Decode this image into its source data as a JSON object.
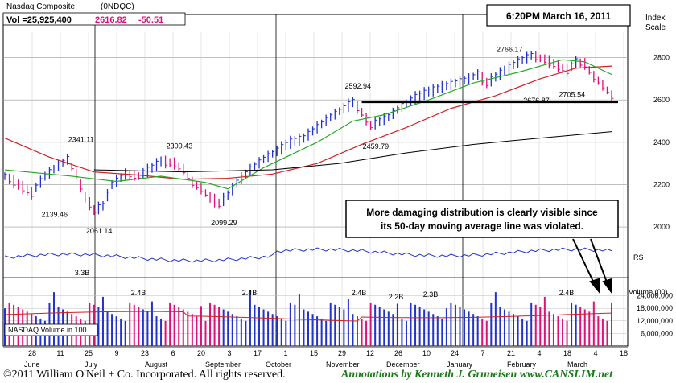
{
  "header": {
    "name": "Nasdaq Composite",
    "symbol": "(0NDQC)",
    "vol_label": "Vol =25,925,400",
    "price": "2616.82",
    "change": "-50.51",
    "timestamp": "6:20PM March 16, 2011",
    "scale_label_1": "Index",
    "scale_label_2": "Scale"
  },
  "annotation": {
    "line1": "More damaging distribution is clearly visible since",
    "line2": "its 50-day moving average line was violated."
  },
  "footer": {
    "copyright": "©2011 William O'Neil + Co. Incorporated. All rights reserved.",
    "credit": "Annotations by Kenneth J. Gruneisen  www.CANSLIM.net"
  },
  "colors": {
    "up": "#2233cc",
    "down": "#dd1177",
    "ma50": "#22aa22",
    "ma200": "#cc2222",
    "rs": "#2233cc",
    "price_text": "#dd1177"
  },
  "chart_data": {
    "type": "bar",
    "price_axis": {
      "ticks": [
        "2800",
        "2600",
        "2400",
        "2200",
        "2000"
      ],
      "range": [
        1780,
        2920
      ]
    },
    "x_ticks": [
      "28",
      "11",
      "25",
      "9",
      "23",
      "6",
      "20",
      "3",
      "17",
      "1",
      "15",
      "29",
      "12",
      "26",
      "10",
      "24",
      "7",
      "21",
      "4",
      "18",
      "4",
      "18"
    ],
    "months": [
      "June",
      "July",
      "August",
      "September",
      "October",
      "November",
      "December",
      "January",
      "February",
      "March"
    ],
    "price_labels": [
      {
        "text": "2341.11",
        "value": 2341.11
      },
      {
        "text": "2139.46",
        "value": 2139.46
      },
      {
        "text": "2061.14",
        "value": 2061.14
      },
      {
        "text": "2309.43",
        "value": 2309.43
      },
      {
        "text": "2099.29",
        "value": 2099.29
      },
      {
        "text": "2592.94",
        "value": 2592.94
      },
      {
        "text": "2459.79",
        "value": 2459.79
      },
      {
        "text": "2766.17",
        "value": 2766.17
      },
      {
        "text": "2676.87",
        "value": 2676.87
      },
      {
        "text": "2705.54",
        "value": 2705.54
      }
    ],
    "support_level": 2590,
    "price_series": [
      [
        0,
        2240
      ],
      [
        3,
        2200
      ],
      [
        6,
        2160
      ],
      [
        9,
        2240
      ],
      [
        12,
        2290
      ],
      [
        14,
        2320
      ],
      [
        16,
        2250
      ],
      [
        18,
        2140
      ],
      [
        20,
        2080
      ],
      [
        22,
        2100
      ],
      [
        24,
        2200
      ],
      [
        27,
        2250
      ],
      [
        30,
        2240
      ],
      [
        33,
        2280
      ],
      [
        35,
        2310
      ],
      [
        38,
        2300
      ],
      [
        40,
        2270
      ],
      [
        42,
        2210
      ],
      [
        44,
        2180
      ],
      [
        46,
        2140
      ],
      [
        48,
        2110
      ],
      [
        50,
        2150
      ],
      [
        52,
        2210
      ],
      [
        55,
        2270
      ],
      [
        58,
        2320
      ],
      [
        61,
        2360
      ],
      [
        64,
        2400
      ],
      [
        67,
        2420
      ],
      [
        70,
        2470
      ],
      [
        73,
        2520
      ],
      [
        76,
        2560
      ],
      [
        78,
        2590
      ],
      [
        80,
        2540
      ],
      [
        82,
        2480
      ],
      [
        84,
        2500
      ],
      [
        86,
        2520
      ],
      [
        89,
        2570
      ],
      [
        92,
        2610
      ],
      [
        95,
        2640
      ],
      [
        98,
        2660
      ],
      [
        101,
        2680
      ],
      [
        104,
        2700
      ],
      [
        106,
        2720
      ],
      [
        108,
        2680
      ],
      [
        110,
        2710
      ],
      [
        112,
        2740
      ],
      [
        115,
        2780
      ],
      [
        118,
        2810
      ],
      [
        121,
        2790
      ],
      [
        124,
        2760
      ],
      [
        126,
        2740
      ],
      [
        128,
        2780
      ],
      [
        130,
        2770
      ],
      [
        132,
        2710
      ],
      [
        134,
        2670
      ],
      [
        136,
        2620
      ]
    ],
    "ma50": [
      [
        0,
        2270
      ],
      [
        15,
        2240
      ],
      [
        25,
        2215
      ],
      [
        35,
        2240
      ],
      [
        45,
        2210
      ],
      [
        50,
        2180
      ],
      [
        58,
        2280
      ],
      [
        70,
        2400
      ],
      [
        78,
        2500
      ],
      [
        85,
        2530
      ],
      [
        95,
        2600
      ],
      [
        105,
        2680
      ],
      [
        115,
        2730
      ],
      [
        125,
        2790
      ],
      [
        130,
        2780
      ],
      [
        136,
        2720
      ]
    ],
    "ma200": [
      [
        0,
        2420
      ],
      [
        10,
        2330
      ],
      [
        20,
        2260
      ],
      [
        30,
        2245
      ],
      [
        40,
        2225
      ],
      [
        50,
        2230
      ],
      [
        60,
        2250
      ],
      [
        70,
        2300
      ],
      [
        80,
        2390
      ],
      [
        90,
        2470
      ],
      [
        100,
        2560
      ],
      [
        110,
        2620
      ],
      [
        120,
        2700
      ],
      [
        128,
        2750
      ],
      [
        136,
        2760
      ]
    ],
    "ma_long": [
      [
        20,
        2270
      ],
      [
        40,
        2260
      ],
      [
        60,
        2270
      ],
      [
        75,
        2300
      ],
      [
        90,
        2350
      ],
      [
        105,
        2390
      ],
      [
        120,
        2420
      ],
      [
        136,
        2450
      ]
    ],
    "volume_axis": {
      "label": "Volume (00)",
      "ticks": [
        "24,000,000",
        "18,000,000",
        "12,000,000",
        "6,000,000"
      ],
      "range": [
        0,
        30000000
      ]
    },
    "volume_label": "NASDAQ Volume in 100",
    "volume_labels": [
      "3.3B",
      "2.4B",
      "2.4B",
      "2.4B",
      "2.2B",
      "2.3B",
      "2.4B"
    ],
    "rs_label": "RS"
  }
}
